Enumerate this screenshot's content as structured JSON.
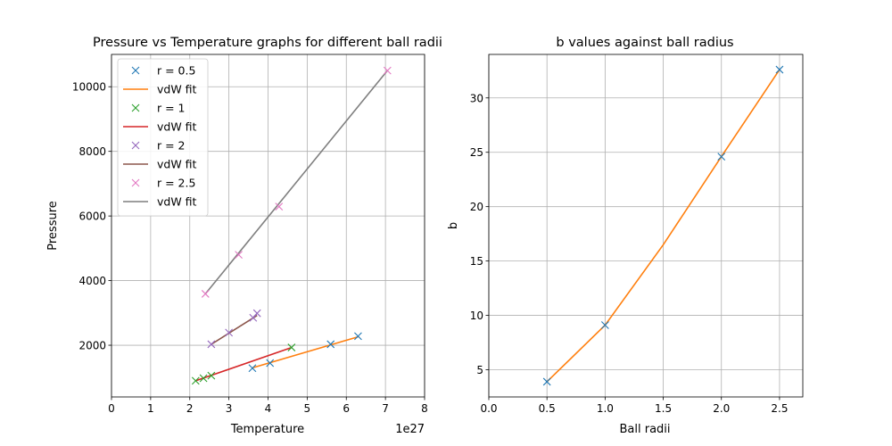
{
  "chart_data": [
    {
      "type": "scatter",
      "title": "Pressure vs Temperature graphs for different ball radii",
      "xlabel": "Temperature",
      "ylabel": "Pressure",
      "x_offset_label": "1e27",
      "xlim": [
        0,
        8
      ],
      "ylim": [
        400,
        11000
      ],
      "xticks": [
        0,
        1,
        2,
        3,
        4,
        5,
        6,
        7,
        8
      ],
      "yticks": [
        2000,
        4000,
        6000,
        8000,
        10000
      ],
      "grid": true,
      "legend_position": "upper-left",
      "series": [
        {
          "name": "r = 0.5",
          "kind": "points",
          "color": "#1f77b4",
          "x": [
            3.6,
            4.05,
            5.6,
            6.3
          ],
          "y": [
            1290,
            1450,
            2030,
            2280
          ]
        },
        {
          "name": "vdW fit",
          "kind": "line",
          "color": "#ff7f0e",
          "x": [
            3.6,
            6.3
          ],
          "y": [
            1300,
            2260
          ]
        },
        {
          "name": "r = 1",
          "kind": "points",
          "color": "#2ca02c",
          "x": [
            2.15,
            2.35,
            2.55,
            4.6
          ],
          "y": [
            900,
            980,
            1060,
            1930
          ]
        },
        {
          "name": "vdW fit",
          "kind": "line",
          "color": "#d62728",
          "x": [
            2.15,
            4.6
          ],
          "y": [
            900,
            1930
          ]
        },
        {
          "name": "r = 2",
          "kind": "points",
          "color": "#9467bd",
          "x": [
            2.55,
            3.0,
            3.62,
            3.72
          ],
          "y": [
            2030,
            2390,
            2850,
            2990
          ]
        },
        {
          "name": "vdW fit",
          "kind": "line",
          "color": "#8c564b",
          "x": [
            2.55,
            3.72
          ],
          "y": [
            2030,
            2920
          ]
        },
        {
          "name": "r = 2.5",
          "kind": "points",
          "color": "#e377c2",
          "x": [
            2.4,
            3.25,
            4.28,
            7.05
          ],
          "y": [
            3590,
            4800,
            6290,
            10500
          ]
        },
        {
          "name": "vdW fit",
          "kind": "line",
          "color": "#7f7f7f",
          "x": [
            2.4,
            7.05
          ],
          "y": [
            3590,
            10500
          ]
        }
      ]
    },
    {
      "type": "line",
      "title": "b values against ball radius",
      "xlabel": "Ball radii",
      "ylabel": "b",
      "xlim": [
        0,
        2.7
      ],
      "ylim": [
        2.5,
        34
      ],
      "xticks": [
        0.0,
        0.5,
        1.0,
        1.5,
        2.0,
        2.5
      ],
      "xtick_labels": [
        "0.0",
        "0.5",
        "1.0",
        "1.5",
        "2.0",
        "2.5"
      ],
      "yticks": [
        5,
        10,
        15,
        20,
        25,
        30
      ],
      "grid": true,
      "series": [
        {
          "kind": "points",
          "color": "#1f77b4",
          "x": [
            0.5,
            1.0,
            2.0,
            2.5
          ],
          "y": [
            3.9,
            9.1,
            24.6,
            32.6
          ]
        },
        {
          "kind": "line",
          "color": "#ff7f0e",
          "x": [
            0.5,
            1.0,
            1.5,
            2.0,
            2.5
          ],
          "y": [
            3.9,
            9.1,
            16.5,
            24.6,
            32.6
          ]
        }
      ]
    }
  ]
}
